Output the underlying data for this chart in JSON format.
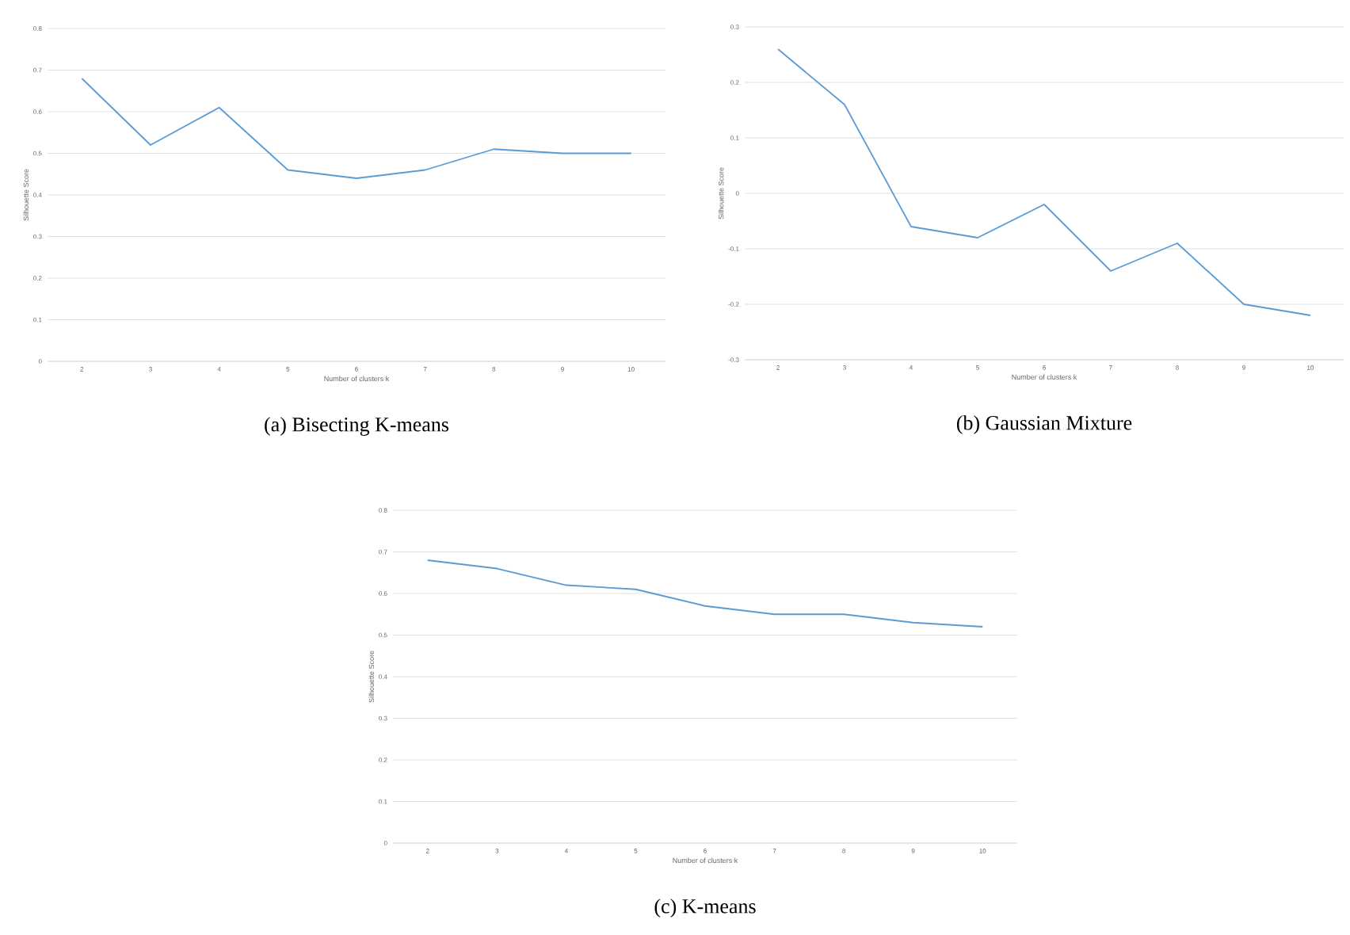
{
  "chart_data": [
    {
      "type": "line",
      "title": "(a) Bisecting K-means",
      "xlabel": "Number of clusters k",
      "ylabel": "Silhouette Score",
      "categories": [
        "2",
        "3",
        "4",
        "5",
        "6",
        "7",
        "8",
        "9",
        "10"
      ],
      "grid": "y",
      "ylim": [
        0,
        0.8
      ],
      "yticks": [
        0,
        0.1,
        0.2,
        0.3,
        0.4,
        0.5,
        0.6,
        0.7,
        0.8
      ],
      "series": [
        {
          "color": "#5b9bd5",
          "values": [
            0.68,
            0.52,
            0.61,
            0.46,
            0.44,
            0.46,
            0.51,
            0.5,
            0.5
          ]
        }
      ]
    },
    {
      "type": "line",
      "title": "(b) Gaussian Mixture",
      "xlabel": "Number of clusters k",
      "ylabel": "Silhouette Score",
      "categories": [
        "2",
        "3",
        "4",
        "5",
        "6",
        "7",
        "8",
        "9",
        "10"
      ],
      "grid": "y",
      "ylim": [
        -0.3,
        0.3
      ],
      "yticks": [
        -0.3,
        -0.2,
        -0.1,
        0,
        0.1,
        0.2,
        0.3
      ],
      "series": [
        {
          "color": "#5b9bd5",
          "values": [
            0.26,
            0.16,
            -0.06,
            -0.08,
            -0.02,
            -0.14,
            -0.09,
            -0.2,
            -0.22
          ]
        }
      ]
    },
    {
      "type": "line",
      "title": "(c) K-means",
      "xlabel": "Number of clusters k",
      "ylabel": "Silhouette Score",
      "categories": [
        "2",
        "3",
        "4",
        "5",
        "6",
        "7",
        "8",
        "9",
        "10"
      ],
      "grid": "y",
      "ylim": [
        0,
        0.8
      ],
      "yticks": [
        0,
        0.1,
        0.2,
        0.3,
        0.4,
        0.5,
        0.6,
        0.7,
        0.8
      ],
      "series": [
        {
          "color": "#5b9bd5",
          "values": [
            0.68,
            0.66,
            0.62,
            0.61,
            0.57,
            0.55,
            0.55,
            0.53,
            0.52
          ]
        }
      ]
    }
  ]
}
